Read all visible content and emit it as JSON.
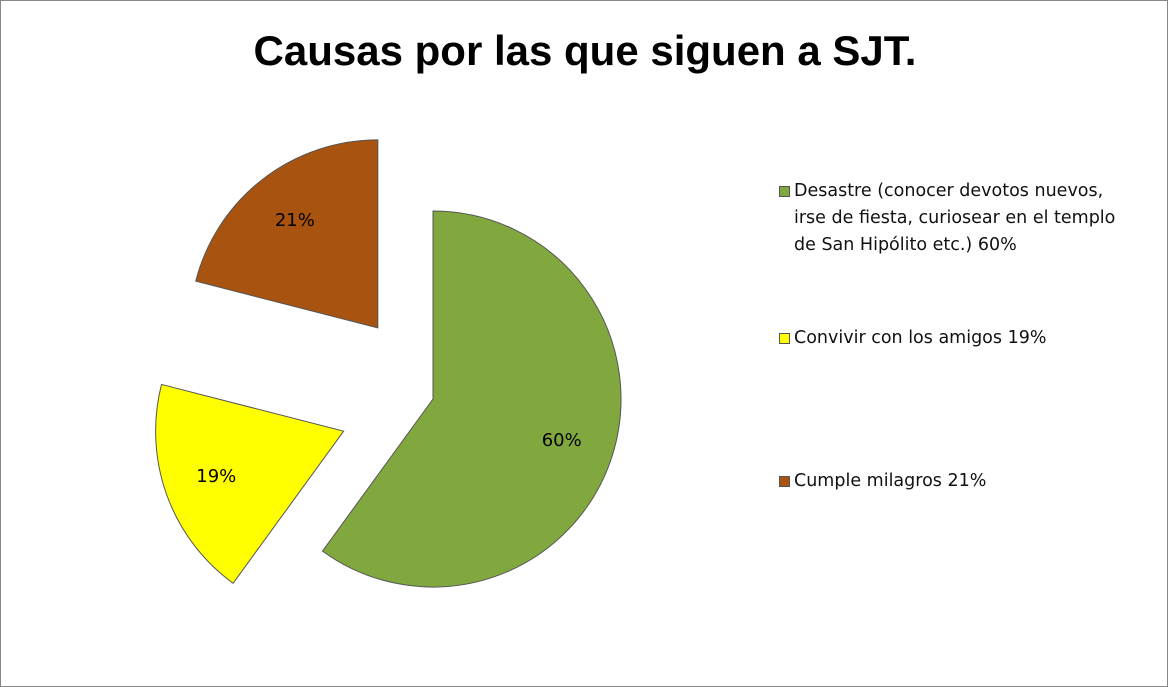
{
  "chart_data": {
    "type": "pie",
    "title": "Causas por las que siguen a SJT.",
    "categories": [
      "Desastre (conocer devotos nuevos, irse de fiesta, curiosear en el templo de San Hipólito etc.) 60%",
      "Convivir con los amigos 19%",
      "Cumple milagros 21%"
    ],
    "values": [
      60,
      19,
      21
    ],
    "value_labels": [
      "60%",
      "19%",
      "21%"
    ],
    "colors": [
      "#80a83e",
      "#ffff00",
      "#a85410"
    ]
  }
}
